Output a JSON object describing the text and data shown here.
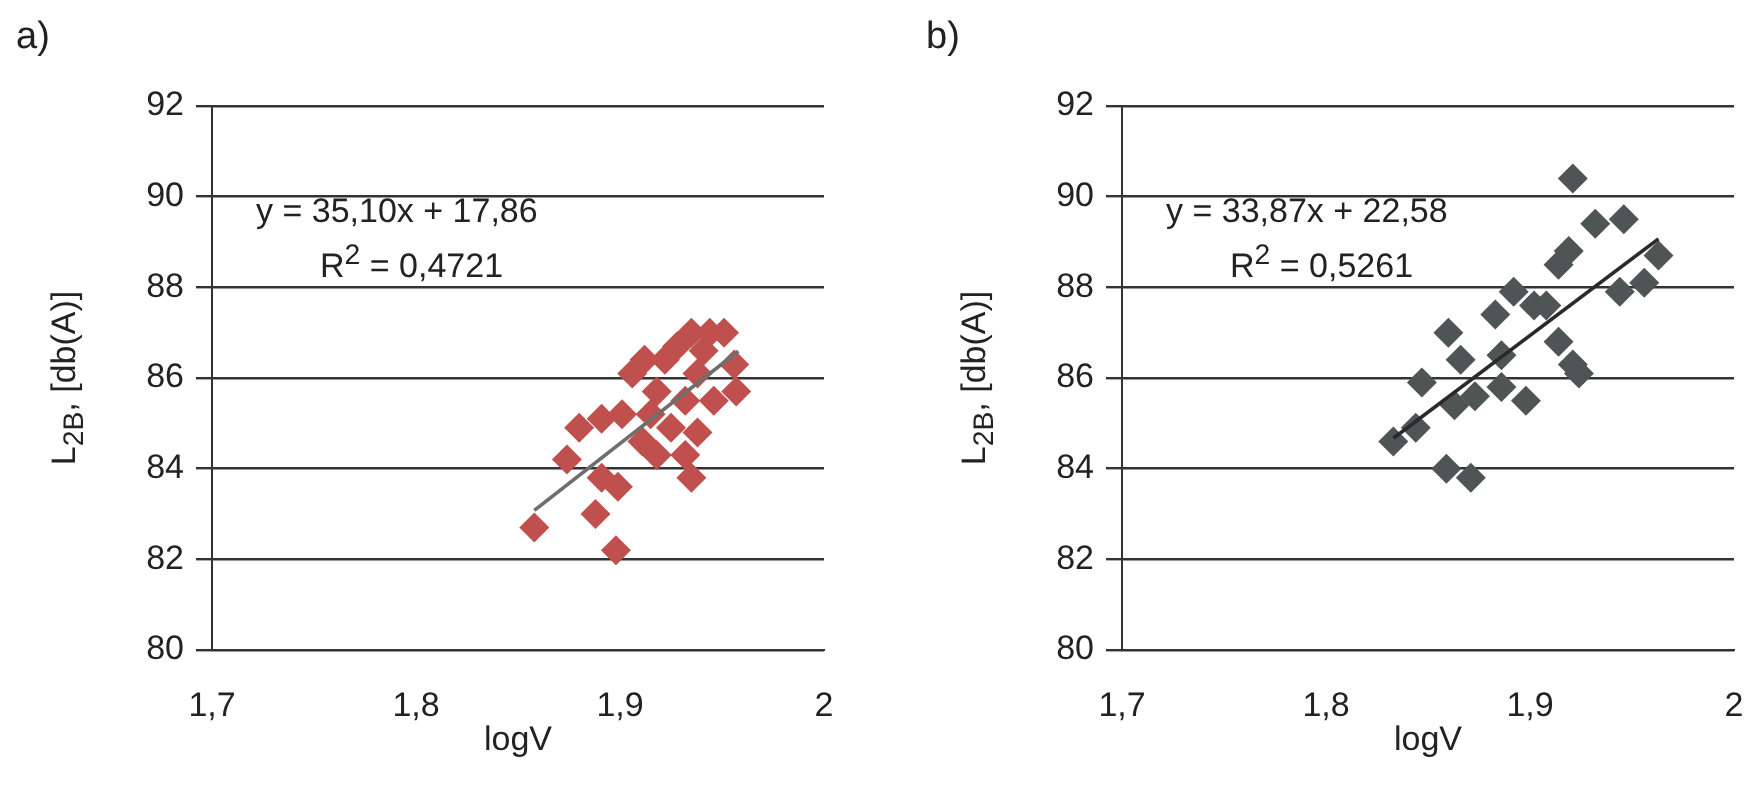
{
  "chart_data": [
    {
      "type": "scatter",
      "title": "a)",
      "xlabel": "logV",
      "ylabel": "L$_{2B}$, [db(A)]",
      "annotations": [
        "y = 35,10x + 17,86",
        "R$^{2}$ = 0,4721"
      ],
      "marker": "diamond",
      "grid": "y",
      "xlim": [
        1.7,
        2
      ],
      "ylim": [
        80,
        92
      ],
      "xticks": [
        {
          "value": 1.7,
          "label": "1,7"
        },
        {
          "value": 1.8,
          "label": "1,8"
        },
        {
          "value": 1.9,
          "label": "1,9"
        },
        2
      ],
      "yticks": [
        80,
        82,
        84,
        86,
        88,
        90,
        92
      ],
      "series": [
        {
          "color": "#c0504d",
          "x": [
            1.858,
            1.898,
            1.888,
            1.891,
            1.899,
            1.874,
            1.935,
            1.88,
            1.891,
            1.901,
            1.911,
            1.912,
            1.918,
            1.925,
            1.932,
            1.938,
            1.928,
            1.935,
            1.944,
            1.951,
            1.956,
            1.957,
            1.946,
            1.922,
            1.938,
            1.915,
            1.906,
            1.932,
            1.941,
            1.918
          ],
          "values": [
            82.7,
            82.2,
            83.0,
            83.8,
            83.6,
            84.2,
            83.8,
            84.9,
            85.1,
            85.2,
            84.6,
            86.4,
            85.7,
            84.9,
            84.3,
            84.8,
            86.7,
            87.0,
            87.0,
            87.0,
            86.3,
            85.7,
            85.5,
            86.4,
            86.1,
            85.2,
            86.1,
            85.5,
            86.6,
            84.3
          ]
        },
        {
          "type": "line",
          "marker": "none",
          "color": "#6e6e6e",
          "x": [
            1.858,
            1.958
          ],
          "values": [
            83.08,
            86.59
          ]
        }
      ]
    },
    {
      "type": "scatter",
      "title": "b)",
      "xlabel": "logV",
      "ylabel": "L$_{2B}$, [db(A)]",
      "annotations": [
        "y = 33,87x + 22,58",
        "R$^{2}$ = 0,5261"
      ],
      "marker": "diamond",
      "grid": "y",
      "xlim": [
        1.7,
        2
      ],
      "ylim": [
        80,
        92
      ],
      "xticks": [
        {
          "value": 1.7,
          "label": "1,7"
        },
        {
          "value": 1.8,
          "label": "1,8"
        },
        {
          "value": 1.9,
          "label": "1,9"
        },
        2
      ],
      "yticks": [
        80,
        82,
        84,
        86,
        88,
        90,
        92
      ],
      "series": [
        {
          "color": "#4f5454",
          "x": [
            1.921,
            1.946,
            1.932,
            1.963,
            1.956,
            1.919,
            1.914,
            1.892,
            1.902,
            1.883,
            1.86,
            1.866,
            1.886,
            1.914,
            1.921,
            1.924,
            1.898,
            1.886,
            1.873,
            1.863,
            1.847,
            1.844,
            1.833,
            1.859,
            1.871,
            1.908,
            1.944
          ],
          "values": [
            90.4,
            89.5,
            89.4,
            88.7,
            88.1,
            88.8,
            88.5,
            87.9,
            87.6,
            87.4,
            87.0,
            86.4,
            86.5,
            86.8,
            86.3,
            86.1,
            85.5,
            85.8,
            85.6,
            85.4,
            85.9,
            84.9,
            84.6,
            84.0,
            83.8,
            87.6,
            87.9
          ]
        },
        {
          "type": "line",
          "marker": "none",
          "color": "#2a2a2a",
          "x": [
            1.833,
            1.963
          ],
          "values": [
            84.67,
            89.07
          ]
        }
      ]
    }
  ]
}
